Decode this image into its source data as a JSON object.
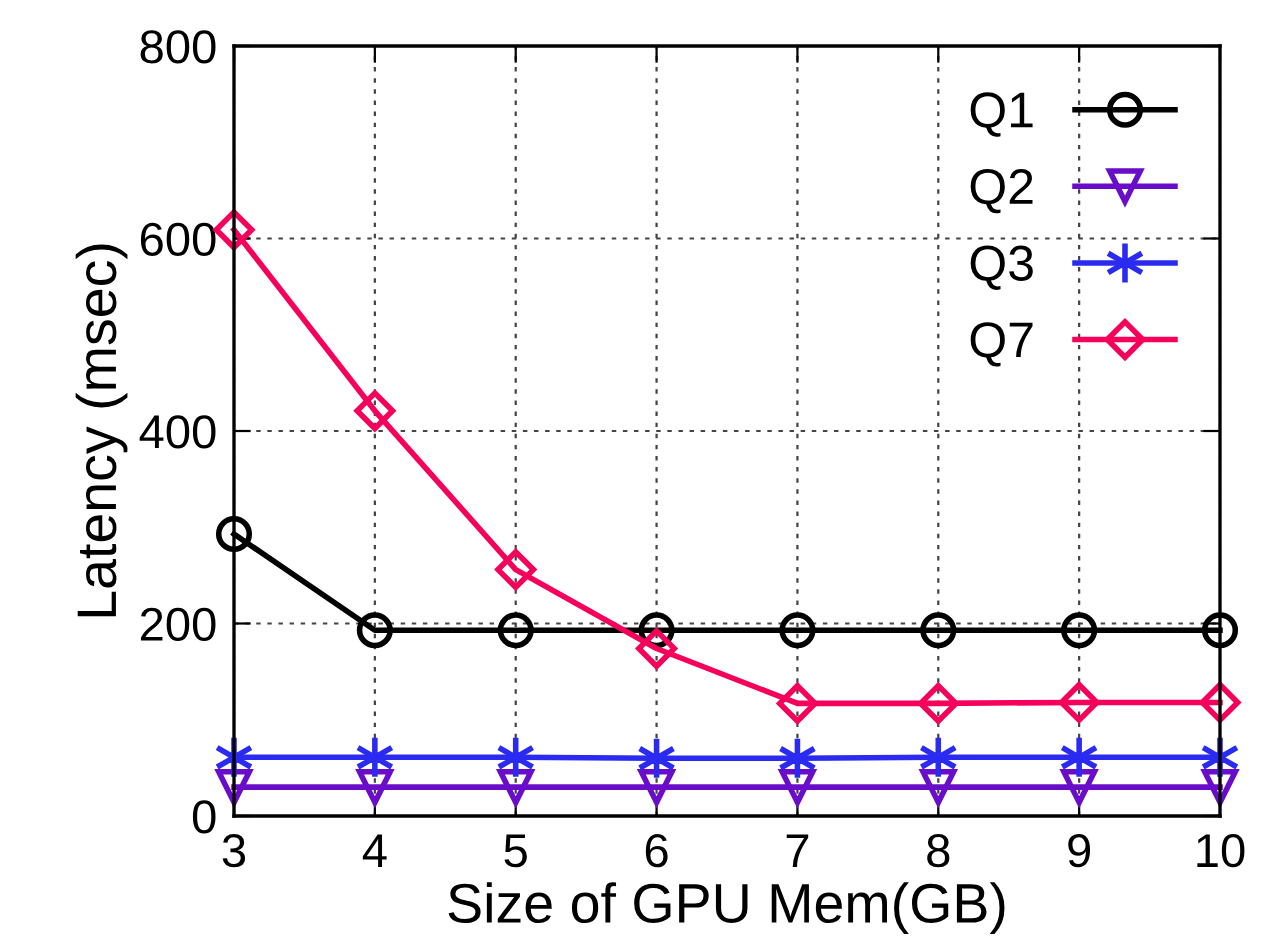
{
  "chart_data": {
    "type": "line",
    "xlabel": "Size of GPU Mem(GB)",
    "ylabel": "Latency (msec)",
    "x": [
      3,
      4,
      5,
      6,
      7,
      8,
      9,
      10
    ],
    "xlim": [
      3,
      10
    ],
    "xticks": [
      3,
      4,
      5,
      6,
      7,
      8,
      9,
      10
    ],
    "ylim": [
      0,
      800
    ],
    "yticks": [
      0,
      200,
      400,
      600,
      800
    ],
    "grid": true,
    "legend": "top right",
    "series": [
      {
        "name": "Q1",
        "color": "#000000",
        "marker": "circle",
        "values": [
          293,
          193,
          193,
          193,
          193,
          193,
          193,
          193
        ]
      },
      {
        "name": "Q2",
        "color": "#6a0dc8",
        "marker": "triangle",
        "values": [
          30,
          30,
          30,
          30,
          30,
          30,
          30,
          30
        ]
      },
      {
        "name": "Q3",
        "color": "#2a2af0",
        "marker": "cross",
        "values": [
          61,
          61,
          61,
          60,
          60,
          61,
          61,
          61
        ]
      },
      {
        "name": "Q7",
        "color": "#f5005a",
        "marker": "diamond",
        "values": [
          609,
          421,
          256,
          174,
          117,
          117,
          118,
          118
        ]
      }
    ]
  }
}
